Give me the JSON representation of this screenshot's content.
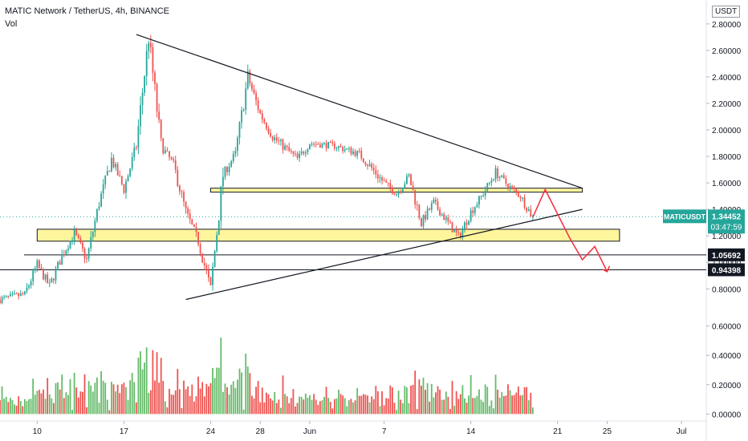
{
  "header": {
    "title": "MATIC Network / TetherUS, 4h, BINANCE",
    "vol_label": "Vol"
  },
  "currency": "USDT",
  "colors": {
    "up": "#26a69a",
    "down": "#ef5350",
    "vol_up": "#66bb6a",
    "vol_down": "#ef5350",
    "zone_fill": "#fff59d",
    "last_price": "#26a69a",
    "arrow": "#f23645"
  },
  "chart_data": {
    "type": "candlestick",
    "symbol": "MATICUSDT",
    "price_axis": {
      "ticks": [
        0.8,
        1.0,
        1.2,
        1.4,
        1.6,
        1.8,
        2.0,
        2.2,
        2.4,
        2.6,
        2.8
      ],
      "tick_labels": [
        "0.80000",
        "1.00000",
        "1.20000",
        "1.40000",
        "1.60000",
        "1.80000",
        "2.00000",
        "2.20000",
        "2.40000",
        "2.60000",
        "2.80000"
      ],
      "range": [
        0.62,
        2.92
      ]
    },
    "volume_axis": {
      "ticks": [
        0,
        0.2,
        0.4,
        0.6
      ],
      "tick_labels": [
        "0.00000",
        "0.20000",
        "0.40000",
        "0.60000"
      ],
      "range": [
        -0.02,
        0.8
      ]
    },
    "x_axis": {
      "range": [
        "2021-05-07",
        "2021-07-03"
      ],
      "ticks": [
        "2021-05-10",
        "2021-05-17",
        "2021-05-24",
        "2021-05-28",
        "2021-06-01",
        "2021-06-07",
        "2021-06-14",
        "2021-06-21",
        "2021-06-25",
        "2021-07-01"
      ],
      "tick_labels": [
        "10",
        "17",
        "24",
        "28",
        "Jun",
        "7",
        "14",
        "21",
        "25",
        "Jul"
      ]
    },
    "path": [
      [
        "2021-05-07",
        0.72
      ],
      [
        "2021-05-09",
        0.76
      ],
      [
        "2021-05-10",
        0.98
      ],
      [
        "2021-05-11",
        0.82
      ],
      [
        "2021-05-12",
        1.05
      ],
      [
        "2021-05-13",
        1.22
      ],
      [
        "2021-05-14",
        1.02
      ],
      [
        "2021-05-15",
        1.45
      ],
      [
        "2021-05-16",
        1.78
      ],
      [
        "2021-05-17",
        1.55
      ],
      [
        "2021-05-18",
        1.88
      ],
      [
        "2021-05-19",
        2.7
      ],
      [
        "2021-05-20",
        1.88
      ],
      [
        "2021-05-21",
        1.74
      ],
      [
        "2021-05-22",
        1.38
      ],
      [
        "2021-05-23",
        1.16
      ],
      [
        "2021-05-24",
        0.8
      ],
      [
        "2021-05-25",
        1.66
      ],
      [
        "2021-05-26",
        1.82
      ],
      [
        "2021-05-27",
        2.4
      ],
      [
        "2021-05-28",
        2.12
      ],
      [
        "2021-05-29",
        1.95
      ],
      [
        "2021-05-31",
        1.78
      ],
      [
        "2021-06-01",
        1.9
      ],
      [
        "2021-06-03",
        1.88
      ],
      [
        "2021-06-05",
        1.82
      ],
      [
        "2021-06-07",
        1.6
      ],
      [
        "2021-06-08",
        1.52
      ],
      [
        "2021-06-09",
        1.65
      ],
      [
        "2021-06-10",
        1.3
      ],
      [
        "2021-06-11",
        1.45
      ],
      [
        "2021-06-12",
        1.32
      ],
      [
        "2021-06-13",
        1.19
      ],
      [
        "2021-06-14",
        1.38
      ],
      [
        "2021-06-15",
        1.52
      ],
      [
        "2021-06-16",
        1.68
      ],
      [
        "2021-06-17",
        1.58
      ],
      [
        "2021-06-18",
        1.5
      ],
      [
        "2021-06-19",
        1.34
      ]
    ],
    "drawings": {
      "resistance_line": {
        "from": [
          "2021-05-18",
          2.72
        ],
        "to": [
          "2021-06-23",
          1.56
        ]
      },
      "support_line": {
        "from": [
          "2021-05-22",
          0.72
        ],
        "to": [
          "2021-06-23",
          1.4
        ]
      },
      "upper_zone": {
        "x": [
          "2021-05-24",
          "2021-06-23"
        ],
        "y": [
          1.53,
          1.56
        ]
      },
      "lower_zone": {
        "x": [
          "2021-05-10",
          "2021-06-26"
        ],
        "y": [
          1.16,
          1.25
        ]
      },
      "level_lines": [
        1.05692,
        0.94398
      ],
      "projection_arrow": [
        [
          "2021-06-19",
          1.34
        ],
        [
          "2021-06-20",
          1.55
        ],
        [
          "2021-06-22",
          1.18
        ],
        [
          "2021-06-22",
          1.18
        ],
        [
          "2021-06-23",
          1.02
        ],
        [
          "2021-06-24",
          1.12
        ],
        [
          "2021-06-25",
          0.93
        ]
      ]
    },
    "price_labels": {
      "last": {
        "symbol": "MATICUSDT",
        "price": "1.34452",
        "countdown": "03:47:59",
        "value": 1.34452
      },
      "levels": [
        {
          "label": "1.05692",
          "value": 1.05692
        },
        {
          "label": "0.94398",
          "value": 0.94398
        }
      ]
    }
  }
}
